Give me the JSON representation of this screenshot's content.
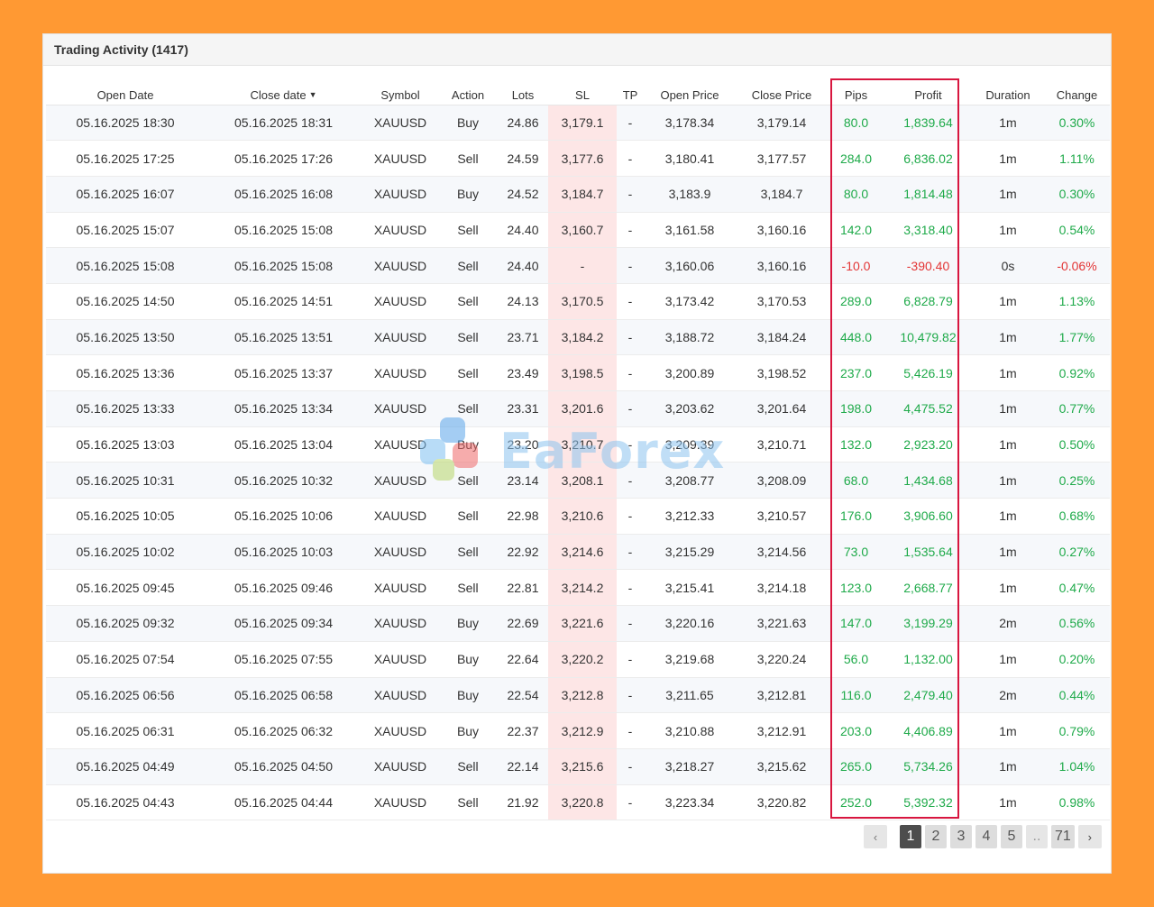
{
  "panel": {
    "title": "Trading Activity (1417)"
  },
  "columns": {
    "open_date": "Open Date",
    "close_date": "Close date",
    "close_date_sort": "▼",
    "symbol": "Symbol",
    "action": "Action",
    "lots": "Lots",
    "sl": "SL",
    "tp": "TP",
    "open_price": "Open Price",
    "close_price": "Close Price",
    "pips": "Pips",
    "profit": "Profit",
    "duration": "Duration",
    "change": "Change"
  },
  "colors": {
    "positive": "#1faa4a",
    "negative": "#e33535",
    "highlight_box": "#d8163f",
    "sl_cell": "#fde6e6",
    "page_background": "#ff9933"
  },
  "rows": [
    {
      "open_date": "05.16.2025 18:30",
      "close_date": "05.16.2025 18:31",
      "symbol": "XAUUSD",
      "action": "Buy",
      "lots": "24.86",
      "sl": "3,179.1",
      "tp": "-",
      "open_price": "3,178.34",
      "close_price": "3,179.14",
      "pips": "80.0",
      "profit": "1,839.64",
      "duration": "1m",
      "change": "0.30%",
      "sign": "pos"
    },
    {
      "open_date": "05.16.2025 17:25",
      "close_date": "05.16.2025 17:26",
      "symbol": "XAUUSD",
      "action": "Sell",
      "lots": "24.59",
      "sl": "3,177.6",
      "tp": "-",
      "open_price": "3,180.41",
      "close_price": "3,177.57",
      "pips": "284.0",
      "profit": "6,836.02",
      "duration": "1m",
      "change": "1.11%",
      "sign": "pos"
    },
    {
      "open_date": "05.16.2025 16:07",
      "close_date": "05.16.2025 16:08",
      "symbol": "XAUUSD",
      "action": "Buy",
      "lots": "24.52",
      "sl": "3,184.7",
      "tp": "-",
      "open_price": "3,183.9",
      "close_price": "3,184.7",
      "pips": "80.0",
      "profit": "1,814.48",
      "duration": "1m",
      "change": "0.30%",
      "sign": "pos"
    },
    {
      "open_date": "05.16.2025 15:07",
      "close_date": "05.16.2025 15:08",
      "symbol": "XAUUSD",
      "action": "Sell",
      "lots": "24.40",
      "sl": "3,160.7",
      "tp": "-",
      "open_price": "3,161.58",
      "close_price": "3,160.16",
      "pips": "142.0",
      "profit": "3,318.40",
      "duration": "1m",
      "change": "0.54%",
      "sign": "pos"
    },
    {
      "open_date": "05.16.2025 15:08",
      "close_date": "05.16.2025 15:08",
      "symbol": "XAUUSD",
      "action": "Sell",
      "lots": "24.40",
      "sl": "-",
      "tp": "-",
      "open_price": "3,160.06",
      "close_price": "3,160.16",
      "pips": "-10.0",
      "profit": "-390.40",
      "duration": "0s",
      "change": "-0.06%",
      "sign": "neg"
    },
    {
      "open_date": "05.16.2025 14:50",
      "close_date": "05.16.2025 14:51",
      "symbol": "XAUUSD",
      "action": "Sell",
      "lots": "24.13",
      "sl": "3,170.5",
      "tp": "-",
      "open_price": "3,173.42",
      "close_price": "3,170.53",
      "pips": "289.0",
      "profit": "6,828.79",
      "duration": "1m",
      "change": "1.13%",
      "sign": "pos"
    },
    {
      "open_date": "05.16.2025 13:50",
      "close_date": "05.16.2025 13:51",
      "symbol": "XAUUSD",
      "action": "Sell",
      "lots": "23.71",
      "sl": "3,184.2",
      "tp": "-",
      "open_price": "3,188.72",
      "close_price": "3,184.24",
      "pips": "448.0",
      "profit": "10,479.82",
      "duration": "1m",
      "change": "1.77%",
      "sign": "pos"
    },
    {
      "open_date": "05.16.2025 13:36",
      "close_date": "05.16.2025 13:37",
      "symbol": "XAUUSD",
      "action": "Sell",
      "lots": "23.49",
      "sl": "3,198.5",
      "tp": "-",
      "open_price": "3,200.89",
      "close_price": "3,198.52",
      "pips": "237.0",
      "profit": "5,426.19",
      "duration": "1m",
      "change": "0.92%",
      "sign": "pos"
    },
    {
      "open_date": "05.16.2025 13:33",
      "close_date": "05.16.2025 13:34",
      "symbol": "XAUUSD",
      "action": "Sell",
      "lots": "23.31",
      "sl": "3,201.6",
      "tp": "-",
      "open_price": "3,203.62",
      "close_price": "3,201.64",
      "pips": "198.0",
      "profit": "4,475.52",
      "duration": "1m",
      "change": "0.77%",
      "sign": "pos"
    },
    {
      "open_date": "05.16.2025 13:03",
      "close_date": "05.16.2025 13:04",
      "symbol": "XAUUSD",
      "action": "Buy",
      "lots": "23.20",
      "sl": "3,210.7",
      "tp": "-",
      "open_price": "3,209.39",
      "close_price": "3,210.71",
      "pips": "132.0",
      "profit": "2,923.20",
      "duration": "1m",
      "change": "0.50%",
      "sign": "pos"
    },
    {
      "open_date": "05.16.2025 10:31",
      "close_date": "05.16.2025 10:32",
      "symbol": "XAUUSD",
      "action": "Sell",
      "lots": "23.14",
      "sl": "3,208.1",
      "tp": "-",
      "open_price": "3,208.77",
      "close_price": "3,208.09",
      "pips": "68.0",
      "profit": "1,434.68",
      "duration": "1m",
      "change": "0.25%",
      "sign": "pos"
    },
    {
      "open_date": "05.16.2025 10:05",
      "close_date": "05.16.2025 10:06",
      "symbol": "XAUUSD",
      "action": "Sell",
      "lots": "22.98",
      "sl": "3,210.6",
      "tp": "-",
      "open_price": "3,212.33",
      "close_price": "3,210.57",
      "pips": "176.0",
      "profit": "3,906.60",
      "duration": "1m",
      "change": "0.68%",
      "sign": "pos"
    },
    {
      "open_date": "05.16.2025 10:02",
      "close_date": "05.16.2025 10:03",
      "symbol": "XAUUSD",
      "action": "Sell",
      "lots": "22.92",
      "sl": "3,214.6",
      "tp": "-",
      "open_price": "3,215.29",
      "close_price": "3,214.56",
      "pips": "73.0",
      "profit": "1,535.64",
      "duration": "1m",
      "change": "0.27%",
      "sign": "pos"
    },
    {
      "open_date": "05.16.2025 09:45",
      "close_date": "05.16.2025 09:46",
      "symbol": "XAUUSD",
      "action": "Sell",
      "lots": "22.81",
      "sl": "3,214.2",
      "tp": "-",
      "open_price": "3,215.41",
      "close_price": "3,214.18",
      "pips": "123.0",
      "profit": "2,668.77",
      "duration": "1m",
      "change": "0.47%",
      "sign": "pos"
    },
    {
      "open_date": "05.16.2025 09:32",
      "close_date": "05.16.2025 09:34",
      "symbol": "XAUUSD",
      "action": "Buy",
      "lots": "22.69",
      "sl": "3,221.6",
      "tp": "-",
      "open_price": "3,220.16",
      "close_price": "3,221.63",
      "pips": "147.0",
      "profit": "3,199.29",
      "duration": "2m",
      "change": "0.56%",
      "sign": "pos"
    },
    {
      "open_date": "05.16.2025 07:54",
      "close_date": "05.16.2025 07:55",
      "symbol": "XAUUSD",
      "action": "Buy",
      "lots": "22.64",
      "sl": "3,220.2",
      "tp": "-",
      "open_price": "3,219.68",
      "close_price": "3,220.24",
      "pips": "56.0",
      "profit": "1,132.00",
      "duration": "1m",
      "change": "0.20%",
      "sign": "pos"
    },
    {
      "open_date": "05.16.2025 06:56",
      "close_date": "05.16.2025 06:58",
      "symbol": "XAUUSD",
      "action": "Buy",
      "lots": "22.54",
      "sl": "3,212.8",
      "tp": "-",
      "open_price": "3,211.65",
      "close_price": "3,212.81",
      "pips": "116.0",
      "profit": "2,479.40",
      "duration": "2m",
      "change": "0.44%",
      "sign": "pos"
    },
    {
      "open_date": "05.16.2025 06:31",
      "close_date": "05.16.2025 06:32",
      "symbol": "XAUUSD",
      "action": "Buy",
      "lots": "22.37",
      "sl": "3,212.9",
      "tp": "-",
      "open_price": "3,210.88",
      "close_price": "3,212.91",
      "pips": "203.0",
      "profit": "4,406.89",
      "duration": "1m",
      "change": "0.79%",
      "sign": "pos"
    },
    {
      "open_date": "05.16.2025 04:49",
      "close_date": "05.16.2025 04:50",
      "symbol": "XAUUSD",
      "action": "Sell",
      "lots": "22.14",
      "sl": "3,215.6",
      "tp": "-",
      "open_price": "3,218.27",
      "close_price": "3,215.62",
      "pips": "265.0",
      "profit": "5,734.26",
      "duration": "1m",
      "change": "1.04%",
      "sign": "pos"
    },
    {
      "open_date": "05.16.2025 04:43",
      "close_date": "05.16.2025 04:44",
      "symbol": "XAUUSD",
      "action": "Sell",
      "lots": "21.92",
      "sl": "3,220.8",
      "tp": "-",
      "open_price": "3,223.34",
      "close_price": "3,220.82",
      "pips": "252.0",
      "profit": "5,392.32",
      "duration": "1m",
      "change": "0.98%",
      "sign": "pos"
    }
  ],
  "pagination": {
    "prev_icon": "‹",
    "pages": [
      "1",
      "2",
      "3",
      "4",
      "5"
    ],
    "active": "1",
    "ellipsis": "..",
    "last": "71",
    "next_icon": "›"
  },
  "watermark": {
    "text": "EaForex",
    "icon": "eaforex-logo-icon"
  }
}
